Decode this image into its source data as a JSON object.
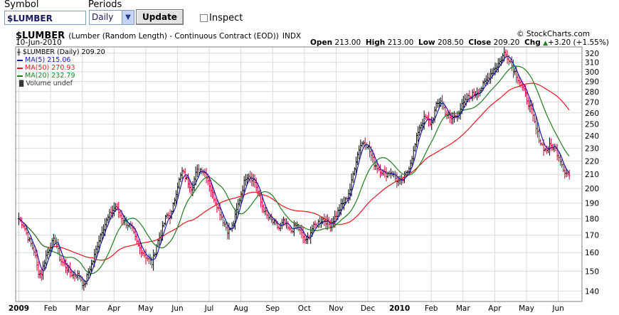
{
  "controls": {
    "symbol_label": "Symbol",
    "symbol_value": "$LUMBER",
    "periods_label": "Periods",
    "periods_value": "Daily",
    "update_label": "Update",
    "inspect_label": "Inspect"
  },
  "header": {
    "symbol": "$LUMBER",
    "description": "(Lumber (Random Length) - Continuous Contract (EOD))",
    "exchange": "INDX",
    "copyright": "© StockCharts.com",
    "date": "10-Jun-2010",
    "open_label": "Open",
    "open_value": "213.00",
    "high_label": "High",
    "high_value": "213.00",
    "low_label": "Low",
    "low_value": "208.50",
    "close_label": "Close",
    "close_value": "209.20",
    "chg_label": "Chg",
    "chg_value": "+3.20 (+1.55%)",
    "chg_arrow": "▲"
  },
  "legend": {
    "main": "$LUMBER (Daily) 209.20",
    "ma5": "MA(5) 215.06",
    "ma50": "MA(50) 270.93",
    "ma20": "MA(20) 232.79",
    "volume": "Volume undef"
  },
  "colors": {
    "up_bar": "#000000",
    "down_bar": "#cc0033",
    "ma5": "#1a1aa8",
    "ma20": "#1e7d1e",
    "ma50": "#e8161b",
    "grid": "#d9d9d9"
  },
  "chart_data": {
    "type": "line",
    "title": "$LUMBER",
    "xlabel": "",
    "ylabel": "",
    "ylim": [
      135,
      327
    ],
    "y_scale": "log",
    "y_ticks": [
      140,
      150,
      160,
      170,
      180,
      190,
      200,
      210,
      220,
      230,
      240,
      250,
      260,
      270,
      280,
      290,
      300,
      310,
      320
    ],
    "x_ticks": [
      {
        "label": "2009",
        "month_index": 0,
        "bold": true
      },
      {
        "label": "Feb",
        "month_index": 1
      },
      {
        "label": "Mar",
        "month_index": 2
      },
      {
        "label": "Apr",
        "month_index": 3
      },
      {
        "label": "May",
        "month_index": 4
      },
      {
        "label": "Jun",
        "month_index": 5
      },
      {
        "label": "Jul",
        "month_index": 6
      },
      {
        "label": "Aug",
        "month_index": 7
      },
      {
        "label": "Sep",
        "month_index": 8
      },
      {
        "label": "Oct",
        "month_index": 9
      },
      {
        "label": "Nov",
        "month_index": 10
      },
      {
        "label": "Dec",
        "month_index": 11
      },
      {
        "label": "2010",
        "month_index": 12,
        "bold": true
      },
      {
        "label": "Feb",
        "month_index": 13
      },
      {
        "label": "Mar",
        "month_index": 14
      },
      {
        "label": "Apr",
        "month_index": 15
      },
      {
        "label": "May",
        "month_index": 16
      },
      {
        "label": "Jun",
        "month_index": 17
      }
    ],
    "x_month_span": [
      -0.1,
      17.75
    ],
    "close_anchors": [
      [
        0,
        180
      ],
      [
        0.15,
        176
      ],
      [
        0.3,
        168
      ],
      [
        0.5,
        160
      ],
      [
        0.6,
        150
      ],
      [
        0.7,
        148
      ],
      [
        0.85,
        158
      ],
      [
        1.0,
        164
      ],
      [
        1.15,
        168
      ],
      [
        1.3,
        156
      ],
      [
        1.5,
        152
      ],
      [
        1.7,
        148
      ],
      [
        1.9,
        148
      ],
      [
        2.05,
        142
      ],
      [
        2.2,
        150
      ],
      [
        2.35,
        156
      ],
      [
        2.5,
        166
      ],
      [
        2.6,
        172
      ],
      [
        2.75,
        178
      ],
      [
        2.9,
        184
      ],
      [
        3.05,
        188
      ],
      [
        3.2,
        182
      ],
      [
        3.35,
        178
      ],
      [
        3.55,
        174
      ],
      [
        3.75,
        164
      ],
      [
        4.0,
        158
      ],
      [
        4.2,
        154
      ],
      [
        4.35,
        165
      ],
      [
        4.5,
        172
      ],
      [
        4.65,
        182
      ],
      [
        4.8,
        182
      ],
      [
        5.0,
        202
      ],
      [
        5.15,
        212
      ],
      [
        5.3,
        206
      ],
      [
        5.45,
        200
      ],
      [
        5.6,
        212
      ],
      [
        5.75,
        214
      ],
      [
        5.9,
        210
      ],
      [
        6.1,
        196
      ],
      [
        6.3,
        186
      ],
      [
        6.45,
        178
      ],
      [
        6.6,
        172
      ],
      [
        6.75,
        176
      ],
      [
        6.9,
        188
      ],
      [
        7.0,
        196
      ],
      [
        7.15,
        208
      ],
      [
        7.25,
        210
      ],
      [
        7.45,
        204
      ],
      [
        7.6,
        192
      ],
      [
        7.8,
        182
      ],
      [
        8.0,
        178
      ],
      [
        8.2,
        174
      ],
      [
        8.35,
        178
      ],
      [
        8.55,
        172
      ],
      [
        8.75,
        176
      ],
      [
        8.9,
        171
      ],
      [
        9.05,
        166
      ],
      [
        9.25,
        174
      ],
      [
        9.45,
        178
      ],
      [
        9.6,
        180
      ],
      [
        9.8,
        176
      ],
      [
        10.0,
        182
      ],
      [
        10.15,
        188
      ],
      [
        10.3,
        192
      ],
      [
        10.45,
        200
      ],
      [
        10.6,
        218
      ],
      [
        10.75,
        232
      ],
      [
        10.9,
        236
      ],
      [
        11.05,
        228
      ],
      [
        11.2,
        218
      ],
      [
        11.35,
        214
      ],
      [
        11.55,
        210
      ],
      [
        11.75,
        212
      ],
      [
        11.9,
        206
      ],
      [
        12.05,
        204
      ],
      [
        12.25,
        212
      ],
      [
        12.45,
        228
      ],
      [
        12.6,
        246
      ],
      [
        12.8,
        256
      ],
      [
        13.0,
        250
      ],
      [
        13.15,
        266
      ],
      [
        13.3,
        272
      ],
      [
        13.45,
        260
      ],
      [
        13.6,
        254
      ],
      [
        13.8,
        258
      ],
      [
        14.0,
        268
      ],
      [
        14.15,
        274
      ],
      [
        14.35,
        278
      ],
      [
        14.55,
        282
      ],
      [
        14.75,
        292
      ],
      [
        14.95,
        302
      ],
      [
        15.15,
        310
      ],
      [
        15.3,
        320
      ],
      [
        15.45,
        314
      ],
      [
        15.6,
        302
      ],
      [
        15.75,
        292
      ],
      [
        15.95,
        278
      ],
      [
        16.15,
        262
      ],
      [
        16.3,
        246
      ],
      [
        16.45,
        234
      ],
      [
        16.6,
        228
      ],
      [
        16.75,
        232
      ],
      [
        16.9,
        230
      ],
      [
        17.05,
        222
      ],
      [
        17.2,
        212
      ],
      [
        17.35,
        209.2
      ]
    ],
    "series": [
      {
        "name": "$LUMBER (Daily)",
        "last": 209.2
      },
      {
        "name": "MA(5)",
        "last": 215.06,
        "period": 5
      },
      {
        "name": "MA(20)",
        "last": 232.79,
        "period": 20
      },
      {
        "name": "MA(50)",
        "last": 270.93,
        "period": 50
      }
    ]
  }
}
